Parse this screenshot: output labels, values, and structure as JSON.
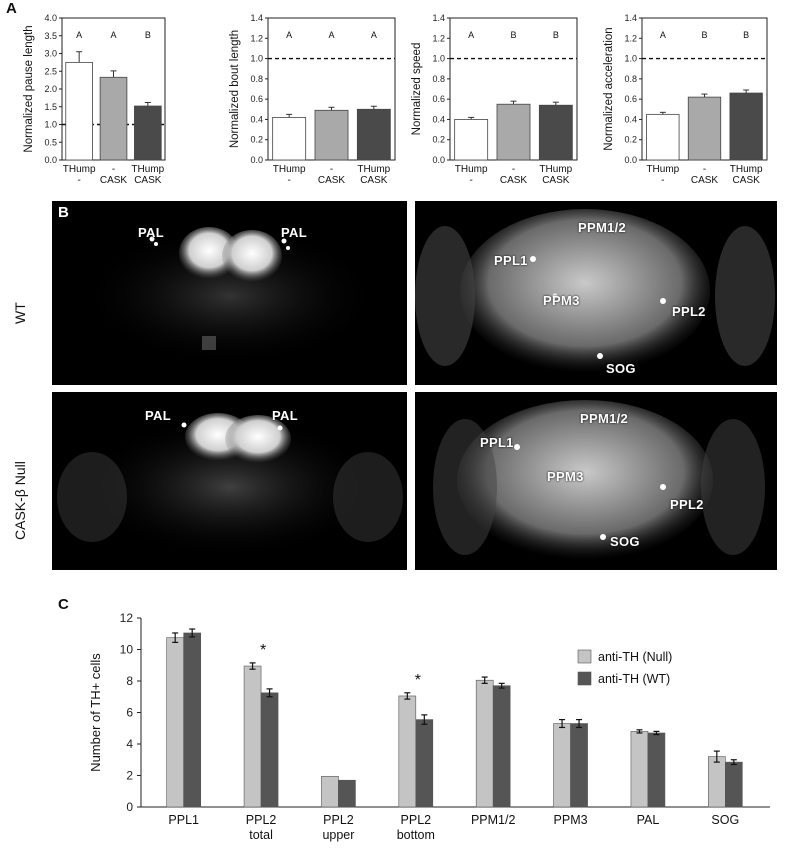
{
  "panel_labels": {
    "a": "A",
    "b": "B",
    "c": "C"
  },
  "panel_a": [
    {
      "ylabel": "Normalized pause length",
      "ticks": [
        "0.0",
        "0.5",
        "1.0",
        "1.5",
        "2.0",
        "2.5",
        "3.0",
        "3.5",
        "4.0"
      ],
      "letters": [
        "A",
        "A",
        "B"
      ]
    },
    {
      "ylabel": "Normalized bout length",
      "ticks": [
        "0.0",
        "0.2",
        "0.4",
        "0.6",
        "0.8",
        "1.0",
        "1.2",
        "1.4"
      ],
      "letters": [
        "A",
        "A",
        "A"
      ]
    },
    {
      "ylabel": "Normalized speed",
      "ticks": [
        "0.0",
        "0.2",
        "0.4",
        "0.6",
        "0.8",
        "1.0",
        "1.2",
        "1.4"
      ],
      "letters": [
        "A",
        "B",
        "B"
      ]
    },
    {
      "ylabel": "Normalized acceleration",
      "ticks": [
        "0.0",
        "0.2",
        "0.4",
        "0.6",
        "0.8",
        "1.0",
        "1.2",
        "1.4"
      ],
      "letters": [
        "A",
        "B",
        "B"
      ]
    }
  ],
  "genotype_labels": [
    [
      "THump",
      "-"
    ],
    [
      "-",
      "CASK"
    ],
    [
      "THump",
      "CASK"
    ]
  ],
  "panel_b": {
    "row_labels": [
      "WT",
      "CASK-β Null"
    ],
    "wt_left": [
      "PAL",
      "PAL"
    ],
    "wt_right": [
      "PPM1/2",
      "PPL1",
      "PPM3",
      "PPL2",
      "SOG"
    ],
    "null_left": [
      "PAL",
      "PAL"
    ],
    "null_right": [
      "PPM1/2",
      "PPL1",
      "PPM3",
      "PPL2",
      "SOG"
    ]
  },
  "chart_data": [
    {
      "type": "bar",
      "categories": [
        "THump -",
        "- CASK",
        "THump CASK"
      ],
      "values": [
        2.75,
        2.33,
        1.52
      ],
      "errors": [
        0.3,
        0.18,
        0.1
      ],
      "ylim": [
        0,
        4.0
      ],
      "reference_line": 1.0,
      "colors": [
        "#ffffff",
        "#a9a9a9",
        "#4a4a4a"
      ]
    },
    {
      "type": "bar",
      "categories": [
        "THump -",
        "- CASK",
        "THump CASK"
      ],
      "values": [
        0.42,
        0.49,
        0.5
      ],
      "errors": [
        0.03,
        0.03,
        0.03
      ],
      "ylim": [
        0,
        1.4
      ],
      "reference_line": 1.0,
      "colors": [
        "#ffffff",
        "#a9a9a9",
        "#4a4a4a"
      ]
    },
    {
      "type": "bar",
      "categories": [
        "THump -",
        "- CASK",
        "THump CASK"
      ],
      "values": [
        0.4,
        0.55,
        0.54
      ],
      "errors": [
        0.02,
        0.03,
        0.03
      ],
      "ylim": [
        0,
        1.4
      ],
      "reference_line": 1.0,
      "colors": [
        "#ffffff",
        "#a9a9a9",
        "#4a4a4a"
      ]
    },
    {
      "type": "bar",
      "categories": [
        "THump -",
        "- CASK",
        "THump CASK"
      ],
      "values": [
        0.45,
        0.62,
        0.66
      ],
      "errors": [
        0.02,
        0.03,
        0.03
      ],
      "ylim": [
        0,
        1.4
      ],
      "reference_line": 1.0,
      "colors": [
        "#ffffff",
        "#a9a9a9",
        "#4a4a4a"
      ]
    },
    {
      "type": "bar",
      "categories": [
        "PPL1",
        "PPL2 total",
        "PPL2 upper",
        "PPL2 bottom",
        "PPM1/2",
        "PPM3",
        "PAL",
        "SOG"
      ],
      "category_lines": [
        [
          "PPL1"
        ],
        [
          "PPL2",
          "total"
        ],
        [
          "PPL2",
          "upper"
        ],
        [
          "PPL2",
          "bottom"
        ],
        [
          "PPM1/2"
        ],
        [
          "PPM3"
        ],
        [
          "PAL"
        ],
        [
          "SOG"
        ]
      ],
      "series": [
        {
          "name": "anti-TH (Null)",
          "values": [
            10.75,
            8.95,
            1.95,
            7.05,
            8.05,
            5.3,
            4.8,
            3.2
          ],
          "errors": [
            0.3,
            0.2,
            0,
            0.2,
            0.2,
            0.25,
            0.1,
            0.35
          ],
          "color": "#c4c4c4"
        },
        {
          "name": "anti-TH (WT)",
          "values": [
            11.05,
            7.25,
            1.7,
            5.55,
            7.7,
            5.3,
            4.7,
            2.85
          ],
          "errors": [
            0.25,
            0.25,
            0,
            0.3,
            0.15,
            0.25,
            0.1,
            0.15
          ],
          "color": "#555555"
        }
      ],
      "ylabel": "Number of TH+ cells",
      "yticks": [
        "0",
        "2",
        "4",
        "6",
        "8",
        "10",
        "12"
      ],
      "ylim": [
        0,
        12
      ],
      "significance": [
        {
          "category": "PPL2 total",
          "mark": "*"
        },
        {
          "category": "PPL2 bottom",
          "mark": "*"
        }
      ],
      "legend_position": "top-right"
    }
  ]
}
